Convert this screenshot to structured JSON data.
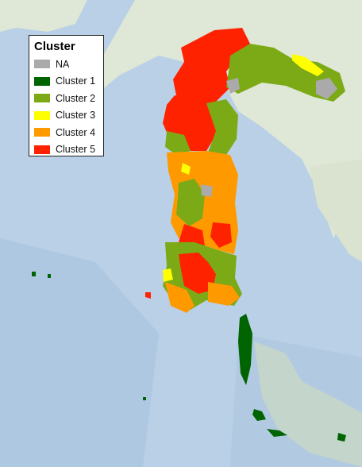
{
  "legend": {
    "title": "Cluster",
    "items": [
      {
        "label": "NA",
        "color": "#aaaaaa"
      },
      {
        "label": "Cluster 1",
        "color": "#006400"
      },
      {
        "label": "Cluster 2",
        "color": "#7caa16"
      },
      {
        "label": "Cluster 3",
        "color": "#ffff00"
      },
      {
        "label": "Cluster 4",
        "color": "#ff9900"
      },
      {
        "label": "Cluster 5",
        "color": "#ff2200"
      }
    ]
  },
  "colors": {
    "sea": "#b9d0e6",
    "deep_sea": "#9fbad6",
    "land": "#dfe7d6"
  }
}
